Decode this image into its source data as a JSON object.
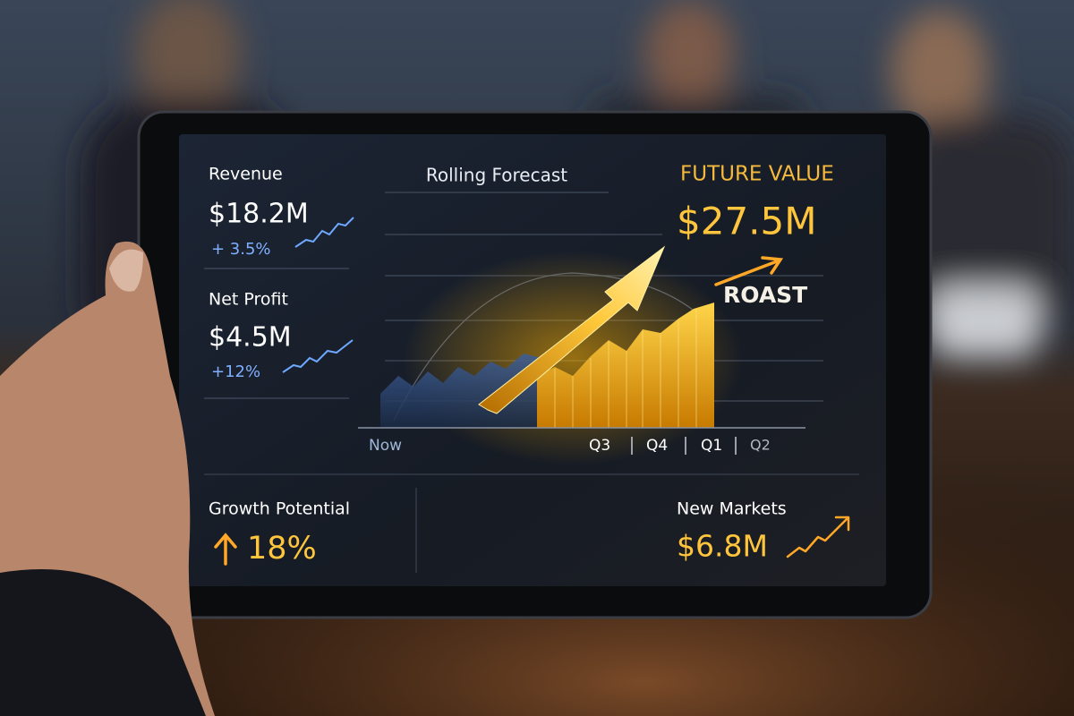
{
  "metrics": [
    {
      "label": "Revenue",
      "value": "$18.2M",
      "change": "+ 3.5%"
    },
    {
      "label": "Net Profit",
      "value": "$4.5M",
      "change": "+12%"
    }
  ],
  "forecast": {
    "title": "Rolling Forecast",
    "axis_labels": [
      "Now",
      "Q3",
      "Q4",
      "Q1",
      "Q2"
    ]
  },
  "future": {
    "label": "FUTURE VALUE",
    "value": "$27.5M",
    "tag": "ROAST"
  },
  "growth": {
    "label": "Growth Potential",
    "value": "18%"
  },
  "markets": {
    "label": "New Markets",
    "value": "$6.8M"
  }
}
